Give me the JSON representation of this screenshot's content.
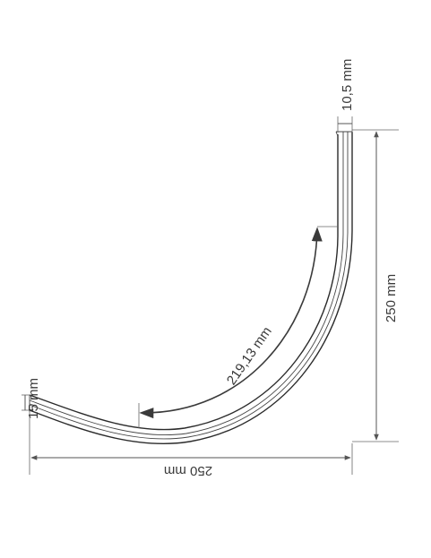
{
  "dimensions": {
    "top_width": "10,5 mm",
    "height": "250 mm",
    "arc_length": "219,13 mm",
    "end_height": "15 mm",
    "width": "250 mm"
  },
  "colors": {
    "line": "#2b2b2b",
    "dimension": "#555555",
    "text": "#3a3a3a",
    "background": "#ffffff"
  }
}
